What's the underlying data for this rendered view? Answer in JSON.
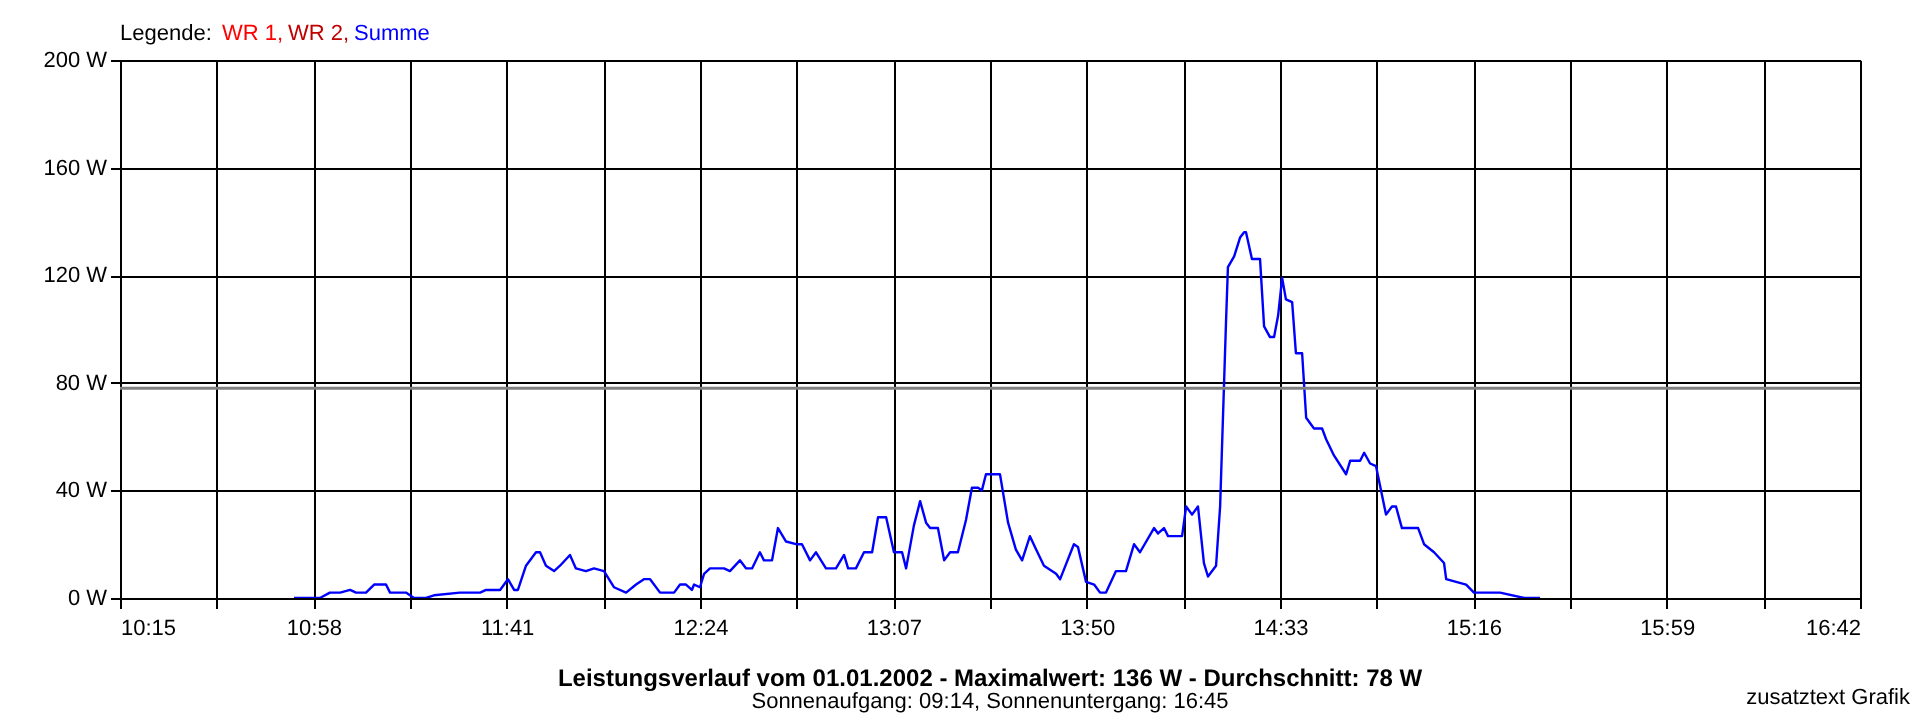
{
  "chart_data": {
    "type": "line",
    "title": "Leistungsverlauf vom 01.01.2002 - Maximalwert: 136 W - Durchschnitt: 78 W",
    "subtitle": "Sonnenaufgang: 09:14, Sonnenuntergang: 16:45",
    "legend_title": "Legende:",
    "annotations": [
      "zusatztext Grafik"
    ],
    "xlim": [
      10.25,
      16.7
    ],
    "xticks": [
      {
        "value": 10.25,
        "label": "10:15"
      },
      {
        "value": 10.6083,
        "label": null
      },
      {
        "value": 10.9667,
        "label": "10:58"
      },
      {
        "value": 11.325,
        "label": null
      },
      {
        "value": 11.6833,
        "label": "11:41"
      },
      {
        "value": 12.0417,
        "label": null
      },
      {
        "value": 12.4,
        "label": "12:24"
      },
      {
        "value": 12.7583,
        "label": null
      },
      {
        "value": 13.1167,
        "label": "13:07"
      },
      {
        "value": 13.475,
        "label": null
      },
      {
        "value": 13.8333,
        "label": "13:50"
      },
      {
        "value": 14.1917,
        "label": null
      },
      {
        "value": 14.55,
        "label": "14:33"
      },
      {
        "value": 14.9083,
        "label": null
      },
      {
        "value": 15.2667,
        "label": "15:16"
      },
      {
        "value": 15.625,
        "label": null
      },
      {
        "value": 15.9833,
        "label": "15:59"
      },
      {
        "value": 16.3417,
        "label": null
      },
      {
        "value": 16.7,
        "label": "16:42"
      }
    ],
    "ylim": [
      0,
      200
    ],
    "yticks": [
      {
        "value": 0,
        "label": "0 W"
      },
      {
        "value": 40,
        "label": "40 W"
      },
      {
        "value": 80,
        "label": "80 W"
      },
      {
        "value": 120,
        "label": "120 W"
      },
      {
        "value": 160,
        "label": "160 W"
      },
      {
        "value": 200,
        "label": "200 W"
      }
    ],
    "grid": true,
    "legend": "top left",
    "ref_lines": [
      {
        "axis": "y",
        "value": 78,
        "color": "#808080"
      }
    ],
    "series": [
      {
        "name": "WR 1,",
        "color": "#ff0000"
      },
      {
        "name": "WR 2,",
        "color": "#c00000"
      },
      {
        "name": "Summe",
        "color": "#0000ff",
        "x": [
          10.895,
          10.991,
          11.028,
          11.066,
          11.103,
          11.125,
          11.162,
          11.192,
          11.236,
          11.251,
          11.31,
          11.34,
          11.384,
          11.414,
          11.51,
          11.585,
          11.607,
          11.659,
          11.688,
          11.711,
          11.725,
          11.755,
          11.792,
          11.807,
          11.829,
          11.859,
          11.881,
          11.918,
          11.94,
          11.977,
          12.007,
          12.044,
          12.081,
          12.126,
          12.163,
          12.192,
          12.215,
          12.252,
          12.304,
          12.326,
          12.348,
          12.37,
          12.378,
          12.4,
          12.415,
          12.437,
          12.489,
          12.511,
          12.548,
          12.571,
          12.593,
          12.622,
          12.637,
          12.667,
          12.689,
          12.719,
          12.756,
          12.778,
          12.808,
          12.83,
          12.867,
          12.904,
          12.934,
          12.949,
          12.978,
          13.008,
          13.038,
          13.06,
          13.09,
          13.119,
          13.149,
          13.164,
          13.193,
          13.216,
          13.238,
          13.253,
          13.282,
          13.305,
          13.327,
          13.356,
          13.386,
          13.408,
          13.431,
          13.445,
          13.46,
          13.512,
          13.542,
          13.571,
          13.594,
          13.623,
          13.646,
          13.675,
          13.72,
          13.735,
          13.786,
          13.801,
          13.831,
          13.861,
          13.883,
          13.905,
          13.942,
          13.979,
          14.009,
          14.031,
          14.083,
          14.098,
          14.12,
          14.135,
          14.187,
          14.202,
          14.224,
          14.246,
          14.268,
          14.283,
          14.313,
          14.328,
          14.343,
          14.35,
          14.357,
          14.38,
          14.402,
          14.417,
          14.424,
          14.446,
          14.476,
          14.491,
          14.513,
          14.528,
          14.543,
          14.558,
          14.572,
          14.595,
          14.609,
          14.632,
          14.647,
          14.676,
          14.706,
          14.721,
          14.75,
          14.795,
          14.81,
          14.847,
          14.862,
          14.884,
          14.906,
          14.943,
          14.965,
          14.98,
          15.002,
          15.062,
          15.084,
          15.121,
          15.158,
          15.166,
          15.203,
          15.24,
          15.269,
          15.366,
          15.455,
          15.514
        ],
        "values": [
          0,
          0,
          2,
          2,
          3,
          2,
          2,
          5,
          5,
          2,
          2,
          0,
          0,
          1,
          2,
          2,
          3,
          3,
          7,
          3,
          3,
          12,
          17,
          17,
          12,
          10,
          12,
          16,
          11,
          10,
          11,
          10,
          4,
          2,
          5,
          7,
          7,
          2,
          2,
          5,
          5,
          3,
          5,
          4,
          9,
          11,
          11,
          10,
          14,
          11,
          11,
          17,
          14,
          14,
          26,
          21,
          20,
          20,
          14,
          17,
          11,
          11,
          16,
          11,
          11,
          17,
          17,
          30,
          30,
          17,
          17,
          11,
          27,
          36,
          28,
          26,
          26,
          14,
          17,
          17,
          29,
          41,
          41,
          40,
          46,
          46,
          28,
          18,
          14,
          23,
          18,
          12,
          9,
          7,
          20,
          19,
          6,
          5,
          2,
          2,
          10,
          10,
          20,
          17,
          26,
          24,
          26,
          23,
          23,
          34,
          31,
          34,
          13,
          8,
          12,
          34,
          81,
          103,
          123,
          127,
          134,
          136,
          136,
          126,
          126,
          101,
          97,
          97,
          105,
          119,
          111,
          110,
          91,
          91,
          67,
          63,
          63,
          59,
          53,
          46,
          51,
          51,
          54,
          50,
          49,
          31,
          34,
          34,
          26,
          26,
          20,
          17,
          13,
          7,
          6,
          5,
          2,
          2,
          0,
          0
        ]
      }
    ]
  }
}
